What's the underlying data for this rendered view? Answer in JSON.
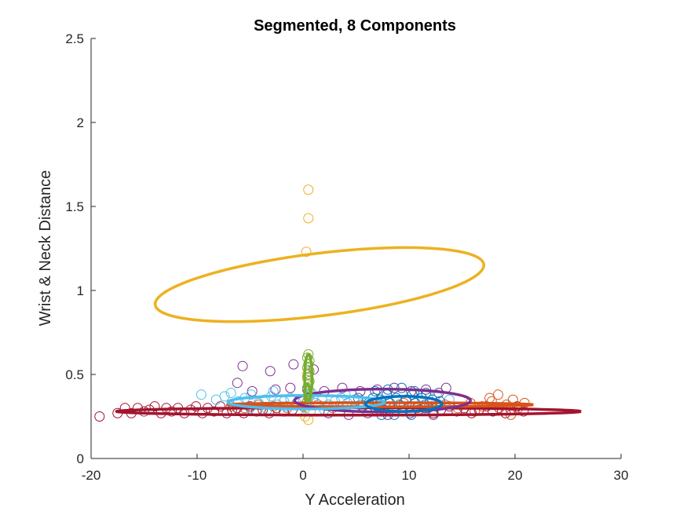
{
  "chart_data": {
    "type": "scatter",
    "title": "Segmented, 8 Components",
    "xlabel": "Y Acceleration",
    "ylabel": "Wrist & Neck Distance",
    "xlim": [
      -20,
      30
    ],
    "ylim": [
      0,
      2.5
    ],
    "xticks": [
      -20,
      -10,
      0,
      10,
      20,
      30
    ],
    "yticks": [
      0,
      0.5,
      1,
      1.5,
      2,
      2.5
    ],
    "grid": false,
    "legend": "none",
    "series": [
      {
        "color": "#A2142F",
        "marker": "circle-open",
        "points": [
          [
            -19.2,
            0.25
          ],
          [
            -17.5,
            0.27
          ],
          [
            -16.8,
            0.3
          ],
          [
            -16.2,
            0.27
          ],
          [
            -15.6,
            0.3
          ],
          [
            -15,
            0.28
          ],
          [
            -14.5,
            0.29
          ],
          [
            -14,
            0.31
          ],
          [
            -13.4,
            0.27
          ],
          [
            -12.9,
            0.3
          ],
          [
            -12.4,
            0.28
          ],
          [
            -11.8,
            0.3
          ],
          [
            -11.2,
            0.27
          ],
          [
            -10.6,
            0.29
          ],
          [
            -10.1,
            0.31
          ],
          [
            -9.5,
            0.27
          ],
          [
            -9,
            0.3
          ],
          [
            -8.4,
            0.28
          ],
          [
            -7.8,
            0.31
          ],
          [
            -7.2,
            0.27
          ],
          [
            -6.7,
            0.29
          ],
          [
            -6.2,
            0.3
          ],
          [
            -5.6,
            0.27
          ],
          [
            -5,
            0.31
          ],
          [
            -4.4,
            0.28
          ],
          [
            -3.8,
            0.29
          ],
          [
            -3.2,
            0.27
          ],
          [
            -2.5,
            0.3
          ],
          [
            -1.8,
            0.28
          ],
          [
            -1,
            0.29
          ],
          [
            11.5,
            0.3
          ],
          [
            12.3,
            0.27
          ],
          [
            13,
            0.29
          ],
          [
            13.8,
            0.31
          ],
          [
            14.5,
            0.28
          ],
          [
            15.2,
            0.3
          ],
          [
            15.9,
            0.27
          ],
          [
            16.6,
            0.29
          ],
          [
            17.3,
            0.31
          ],
          [
            17.9,
            0.28
          ],
          [
            18.5,
            0.3
          ],
          [
            19.1,
            0.27
          ],
          [
            19.6,
            0.29
          ],
          [
            20.2,
            0.31
          ],
          [
            20.8,
            0.28
          ]
        ]
      },
      {
        "color": "#D95319",
        "marker": "circle-open",
        "points": [
          [
            -6.8,
            0.31
          ],
          [
            -5.5,
            0.3
          ],
          [
            -4.2,
            0.32
          ],
          [
            -2.8,
            0.31
          ],
          [
            -1.5,
            0.3
          ],
          [
            0,
            0.31
          ],
          [
            1.4,
            0.32
          ],
          [
            2.8,
            0.3
          ],
          [
            4.1,
            0.31
          ],
          [
            5.5,
            0.32
          ],
          [
            6.8,
            0.3
          ],
          [
            8.1,
            0.31
          ],
          [
            9.5,
            0.33
          ],
          [
            10.8,
            0.3
          ],
          [
            12.1,
            0.31
          ],
          [
            13.4,
            0.32
          ],
          [
            14.6,
            0.3
          ],
          [
            15.8,
            0.33
          ],
          [
            16.9,
            0.31
          ],
          [
            17.8,
            0.34
          ],
          [
            18.5,
            0.3
          ],
          [
            19.2,
            0.32
          ],
          [
            19.8,
            0.35
          ],
          [
            20.3,
            0.3
          ],
          [
            20.9,
            0.33
          ],
          [
            18.4,
            0.38
          ],
          [
            19.6,
            0.26
          ],
          [
            17.6,
            0.36
          ],
          [
            16.2,
            0.28
          ]
        ]
      },
      {
        "color": "#7E2F8E",
        "marker": "circle-open",
        "points": [
          [
            -5.7,
            0.55
          ],
          [
            -3.1,
            0.52
          ],
          [
            -0.9,
            0.56
          ],
          [
            1,
            0.53
          ],
          [
            -6.2,
            0.45
          ],
          [
            -4.8,
            0.4
          ],
          [
            -2.6,
            0.41
          ],
          [
            -1.2,
            0.42
          ],
          [
            0.4,
            0.41
          ],
          [
            2,
            0.4
          ],
          [
            3.7,
            0.42
          ],
          [
            5.4,
            0.4
          ],
          [
            7,
            0.41
          ],
          [
            8.6,
            0.42
          ],
          [
            10.2,
            0.4
          ],
          [
            11.6,
            0.41
          ],
          [
            12.8,
            0.39
          ],
          [
            13.5,
            0.42
          ],
          [
            2.4,
            0.27
          ],
          [
            4.3,
            0.26
          ],
          [
            6.1,
            0.27
          ],
          [
            8,
            0.26
          ],
          [
            10.1,
            0.27
          ],
          [
            12.3,
            0.26
          ]
        ]
      },
      {
        "color": "#EDB120",
        "marker": "circle-open",
        "points": [
          [
            0.5,
            1.6
          ],
          [
            0.5,
            1.43
          ],
          [
            0.3,
            1.23
          ],
          [
            0.4,
            0.5
          ],
          [
            0.6,
            0.46
          ],
          [
            0.2,
            0.25
          ],
          [
            0.5,
            0.23
          ],
          [
            0.7,
            0.28
          ]
        ]
      },
      {
        "color": "#77AC30",
        "marker": "circle-open",
        "points": [
          [
            0.5,
            0.62
          ],
          [
            0.4,
            0.6
          ],
          [
            0.6,
            0.58
          ],
          [
            0.5,
            0.56
          ],
          [
            0.4,
            0.54
          ],
          [
            0.6,
            0.52
          ],
          [
            0.5,
            0.5
          ],
          [
            0.4,
            0.48
          ],
          [
            0.6,
            0.46
          ],
          [
            0.5,
            0.44
          ],
          [
            0.4,
            0.42
          ],
          [
            0.6,
            0.4
          ],
          [
            0.5,
            0.38
          ],
          [
            0.5,
            0.36
          ],
          [
            0.4,
            0.34
          ]
        ]
      },
      {
        "color": "#4DBEEE",
        "marker": "circle-open",
        "points": [
          [
            -9.6,
            0.38
          ],
          [
            -8.2,
            0.35
          ],
          [
            -7.4,
            0.37
          ],
          [
            -6.8,
            0.39
          ],
          [
            -6.1,
            0.34
          ],
          [
            -5.5,
            0.36
          ],
          [
            -4.9,
            0.38
          ],
          [
            -4.2,
            0.33
          ],
          [
            -3.6,
            0.35
          ],
          [
            -3,
            0.37
          ],
          [
            -2.4,
            0.32
          ],
          [
            -1.8,
            0.34
          ],
          [
            -1.2,
            0.36
          ],
          [
            -0.6,
            0.33
          ],
          [
            0,
            0.35
          ],
          [
            0.6,
            0.37
          ],
          [
            1.2,
            0.33
          ],
          [
            1.8,
            0.35
          ],
          [
            2.4,
            0.32
          ],
          [
            3,
            0.34
          ],
          [
            3.6,
            0.36
          ],
          [
            4.2,
            0.33
          ],
          [
            4.8,
            0.35
          ],
          [
            5.4,
            0.32
          ],
          [
            6,
            0.34
          ],
          [
            -5,
            0.3
          ],
          [
            -3.4,
            0.29
          ],
          [
            -1.6,
            0.31
          ],
          [
            0.2,
            0.3
          ],
          [
            2,
            0.29
          ],
          [
            3.8,
            0.31
          ],
          [
            5.6,
            0.3
          ],
          [
            -2.8,
            0.4
          ],
          [
            0.8,
            0.39
          ],
          [
            4,
            0.38
          ],
          [
            13.8,
            0.35
          ],
          [
            12.6,
            0.38
          ]
        ]
      },
      {
        "color": "#0072BD",
        "marker": "circle-open",
        "points": [
          [
            6.2,
            0.33
          ],
          [
            6.6,
            0.36
          ],
          [
            7,
            0.31
          ],
          [
            7.3,
            0.35
          ],
          [
            7.6,
            0.29
          ],
          [
            7.9,
            0.38
          ],
          [
            8.2,
            0.33
          ],
          [
            8.5,
            0.3
          ],
          [
            8.8,
            0.36
          ],
          [
            9.1,
            0.32
          ],
          [
            9.4,
            0.28
          ],
          [
            9.7,
            0.35
          ],
          [
            10,
            0.31
          ],
          [
            10.3,
            0.38
          ],
          [
            10.6,
            0.33
          ],
          [
            10.9,
            0.29
          ],
          [
            11.2,
            0.36
          ],
          [
            11.5,
            0.32
          ],
          [
            11.8,
            0.3
          ],
          [
            12.2,
            0.35
          ],
          [
            12.6,
            0.31
          ],
          [
            6.8,
            0.4
          ],
          [
            8,
            0.41
          ],
          [
            9.3,
            0.42
          ],
          [
            10.5,
            0.4
          ],
          [
            11.6,
            0.39
          ],
          [
            5.2,
            0.36
          ],
          [
            5.6,
            0.31
          ],
          [
            12.9,
            0.34
          ],
          [
            8.6,
            0.26
          ],
          [
            10.2,
            0.26
          ],
          [
            7.4,
            0.26
          ]
        ]
      }
    ],
    "ellipses": [
      {
        "color": "#A2142F",
        "center": [
          4.3,
          0.28
        ],
        "semi_x": 21.9,
        "semi_y": 0.022,
        "angle_deg": 0
      },
      {
        "color": "#D95319",
        "center": [
          7.3,
          0.32
        ],
        "semi_x": 14.4,
        "semi_y": 0.012,
        "angle_deg": 0
      },
      {
        "color": "#EDB120",
        "center": [
          1.55,
          1.035
        ],
        "semi_x": 2.95,
        "semi_y": 0.985,
        "angle_deg": -83
      },
      {
        "color": "#7E2F8E",
        "center": [
          7.5,
          0.345
        ],
        "semi_x": 8.3,
        "semi_y": 0.068,
        "angle_deg": 0
      },
      {
        "color": "#4DBEEE",
        "center": [
          0.3,
          0.335
        ],
        "semi_x": 7.4,
        "semi_y": 0.04,
        "angle_deg": 0
      },
      {
        "color": "#0072BD",
        "center": [
          9.5,
          0.325
        ],
        "semi_x": 3.6,
        "semi_y": 0.045,
        "angle_deg": 0
      },
      {
        "color": "#77AC30",
        "center": [
          0.5,
          0.48
        ],
        "semi_x": 0.35,
        "semi_y": 0.14,
        "angle_deg": 0
      },
      {
        "color": "#77AC30",
        "center": [
          0.4,
          0.39
        ],
        "semi_x": 0.25,
        "semi_y": 0.05,
        "angle_deg": 0
      }
    ]
  }
}
